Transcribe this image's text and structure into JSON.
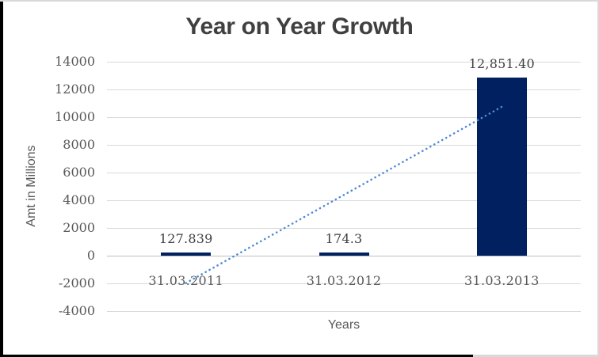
{
  "chart_data": {
    "type": "bar",
    "title": "Year on Year Growth",
    "xlabel": "Years",
    "ylabel": "Amt in Millions",
    "categories": [
      "31.03.2011",
      "31.03.2012",
      "31.03.2013"
    ],
    "values": [
      127.839,
      174.3,
      12851.4
    ],
    "data_labels": [
      "127.839",
      "174.3",
      "12,851.40"
    ],
    "ylim": [
      -4000,
      14000
    ],
    "ytick_step": 2000,
    "ytick_labels": [
      "14000",
      "12000",
      "10000",
      "8000",
      "6000",
      "4000",
      "2000",
      "0",
      "-2000",
      "-4000"
    ],
    "grid": true,
    "legend": false,
    "bar_color": "#002060",
    "gridline_color": "#d9d9d9",
    "zero_axis_color": "#bfbfbf",
    "title_color": "#404040",
    "tick_text_color": "#595959",
    "data_label_color": "#404040",
    "trendline": {
      "type": "linear",
      "style": "dotted",
      "color": "#4e8ad4",
      "start_value": -1977,
      "end_value": 10746
    }
  }
}
